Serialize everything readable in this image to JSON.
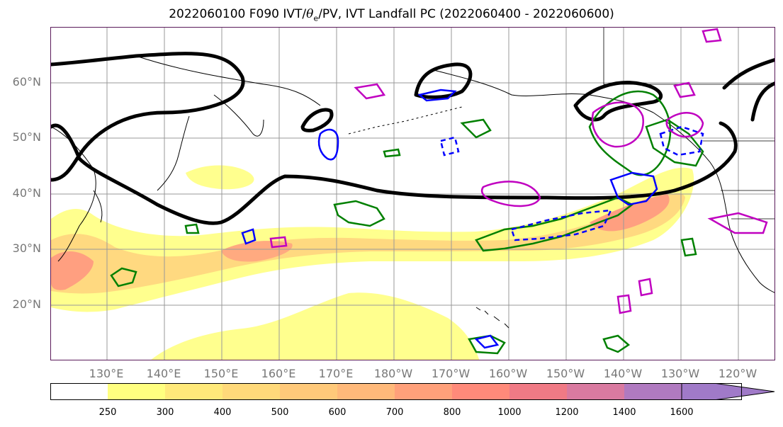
{
  "title": {
    "prefix": "2022060100 F090 IVT/",
    "theta": "θ",
    "theta_sub": "e",
    "suffix": "/PV, IVT Landfall PC (2022060400 - 2022060600)"
  },
  "axes": {
    "lat_labels": [
      "60°N",
      "50°N",
      "40°N",
      "30°N",
      "20°N"
    ],
    "lon_labels": [
      "130°E",
      "140°E",
      "150°E",
      "160°E",
      "170°E",
      "180°W",
      "170°W",
      "160°W",
      "150°W",
      "140°W",
      "130°W",
      "120°W"
    ]
  },
  "colorbar": {
    "levels": [
      "250",
      "300",
      "400",
      "500",
      "600",
      "700",
      "800",
      "1000",
      "1200",
      "1400",
      "1600"
    ],
    "colors": [
      "#ffffff",
      "#ffff80",
      "#ffe97a",
      "#ffd97a",
      "#ffc97a",
      "#ffb97a",
      "#ffa07a",
      "#ff8a7a",
      "#f07a85",
      "#d97aa0",
      "#b07ac0",
      "#a07ac8"
    ]
  },
  "contour_colors": {
    "ivt_shading_light": "#ffff80",
    "ivt_shading_peak": "#ff8a7a",
    "black_contour": "#000000",
    "green_contour": "#008000",
    "blue_contour": "#0000ff",
    "magenta_contour": "#c000c0"
  }
}
